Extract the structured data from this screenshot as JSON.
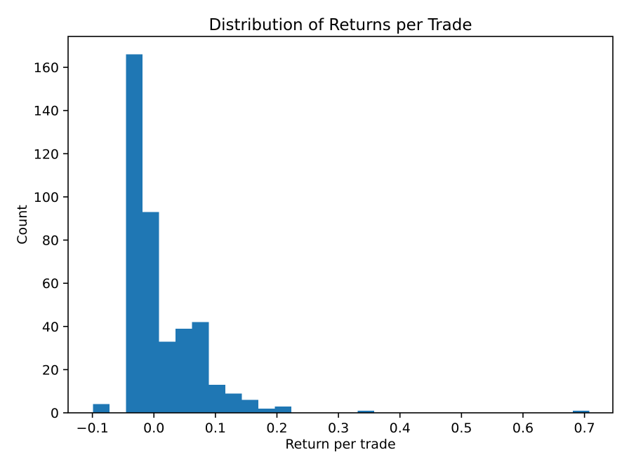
{
  "figure": {
    "background_color": "#ffffff",
    "bar_color": "#1f77b4",
    "axis_color": "#000000",
    "text_color": "#000000"
  },
  "chart_data": {
    "type": "bar",
    "subtype": "histogram",
    "title": "Distribution of Returns per Trade",
    "xlabel": "Return per trade",
    "ylabel": "Count",
    "bins": 30,
    "bin_start": -0.0992,
    "bin_width": 0.0269,
    "counts": [
      4,
      0,
      166,
      93,
      33,
      39,
      42,
      13,
      9,
      6,
      2,
      3,
      0,
      0,
      0,
      0,
      1,
      0,
      0,
      0,
      0,
      0,
      0,
      0,
      0,
      0,
      0,
      0,
      0,
      1
    ],
    "xlim": [
      -0.1395,
      0.7461
    ],
    "ylim": [
      0,
      174.3
    ],
    "xticks": [
      -0.1,
      0.0,
      0.1,
      0.2,
      0.3,
      0.4,
      0.5,
      0.6,
      0.7
    ],
    "xtick_labels": [
      "−0.1",
      "0.0",
      "0.1",
      "0.2",
      "0.3",
      "0.4",
      "0.5",
      "0.6",
      "0.7"
    ],
    "yticks": [
      0,
      20,
      40,
      60,
      80,
      100,
      120,
      140,
      160
    ],
    "ytick_labels": [
      "0",
      "20",
      "40",
      "60",
      "80",
      "100",
      "120",
      "140",
      "160"
    ],
    "grid": false,
    "legend": null
  }
}
